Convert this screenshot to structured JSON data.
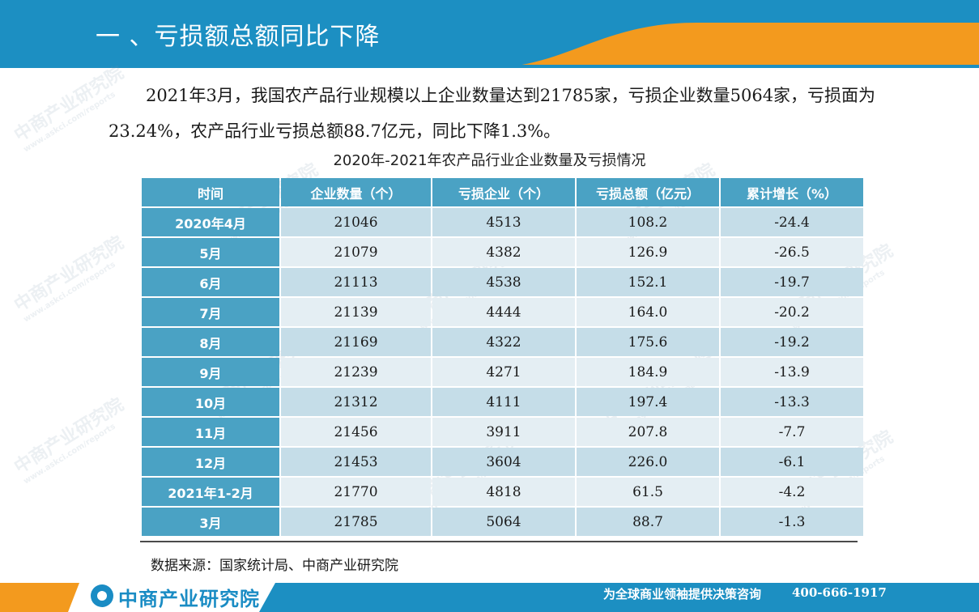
{
  "header": {
    "title": "一 、亏损额总额同比下降",
    "colors": {
      "blue": "#1c8fc2",
      "orange": "#f39a1e"
    }
  },
  "intro_text": "2021年3月，我国农产品行业规模以上企业数量达到21785家，亏损企业数量5064家，亏损面为23.24%，农产品行业亏损总额88.7亿元，同比下降1.3%。",
  "table": {
    "title": "2020年-2021年农产品行业企业数量及亏损情况",
    "headers": [
      "时间",
      "企业数量（个）",
      "亏损企业（个）",
      "亏损总额（亿元）",
      "累计增长（%）"
    ],
    "rows": [
      [
        "2020年4月",
        "21046",
        "4513",
        "108.2",
        "-24.4"
      ],
      [
        "5月",
        "21079",
        "4382",
        "126.9",
        "-26.5"
      ],
      [
        "6月",
        "21113",
        "4538",
        "152.1",
        "-19.7"
      ],
      [
        "7月",
        "21139",
        "4444",
        "164.0",
        "-20.2"
      ],
      [
        "8月",
        "21169",
        "4322",
        "175.6",
        "-19.2"
      ],
      [
        "9月",
        "21239",
        "4271",
        "184.9",
        "-13.9"
      ],
      [
        "10月",
        "21312",
        "4111",
        "197.4",
        "-13.3"
      ],
      [
        "11月",
        "21456",
        "3911",
        "207.8",
        "-7.7"
      ],
      [
        "12月",
        "21453",
        "3604",
        "226.0",
        "-6.1"
      ],
      [
        "2021年1-2月",
        "21770",
        "4818",
        "61.5",
        "-4.2"
      ],
      [
        "3月",
        "21785",
        "5064",
        "88.7",
        "-1.3"
      ]
    ],
    "colors": {
      "header": "#4aa2c4",
      "row_dark": "#c5dde8",
      "row_light": "#e4eef3"
    }
  },
  "source": "数据来源：国家统计局、中商产业研究院",
  "footer": {
    "logo_text": "中商产业研究院",
    "slogan": "为全球商业领袖提供决策咨询",
    "phone": "400-666-1917"
  },
  "watermark": {
    "name": "中商产业研究院",
    "url": "www.askci.com/reports"
  }
}
